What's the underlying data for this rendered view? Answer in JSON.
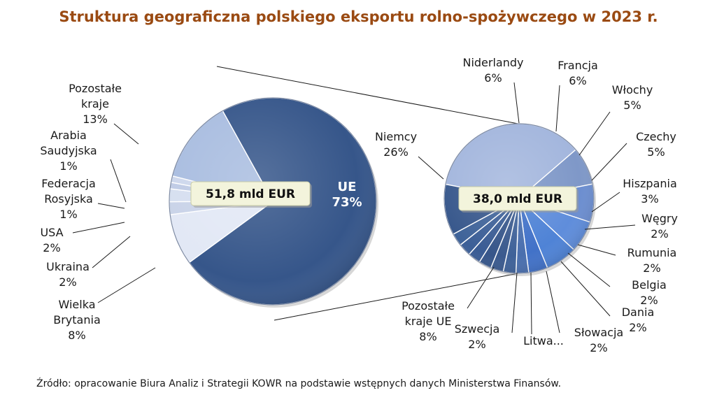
{
  "title": "Struktura geograficzna polskiego eksportu rolno-spożywczego w 2023 r.",
  "source": "Źródło: opracowanie Biura Analiz i Strategii KOWR na podstawie wstępnych danych Ministerstwa Finansów.",
  "colors": {
    "title": "#9a4a12",
    "eu_main": "#36568a",
    "non_eu": "#a9bde0",
    "non_eu_light": "#dfe6f4",
    "callout_fill": "#f3f4dc"
  },
  "chart_data": [
    {
      "type": "pie",
      "total_label": "51,8 mld EUR",
      "slices": [
        {
          "label": "UE",
          "value": 73,
          "value_label": "73%"
        },
        {
          "label": "Wielka Brytania",
          "value": 8,
          "value_label": "8%"
        },
        {
          "label": "Ukraina",
          "value": 2,
          "value_label": "2%"
        },
        {
          "label": "USA",
          "value": 2,
          "value_label": "2%"
        },
        {
          "label": "Federacja Rosyjska",
          "value": 1,
          "value_label": "1%"
        },
        {
          "label": "Arabia Saudyjska",
          "value": 1,
          "value_label": "1%"
        },
        {
          "label": "Pozostałe kraje",
          "value": 13,
          "value_label": "13%"
        }
      ]
    },
    {
      "type": "pie",
      "total_label": "38,0 mld EUR",
      "slices": [
        {
          "label": "Niemcy",
          "value": 26,
          "value_label": "26%"
        },
        {
          "label": "Niderlandy",
          "value": 6,
          "value_label": "6%"
        },
        {
          "label": "Francja",
          "value": 6,
          "value_label": "6%"
        },
        {
          "label": "Włochy",
          "value": 5,
          "value_label": "5%"
        },
        {
          "label": "Czechy",
          "value": 5,
          "value_label": "5%"
        },
        {
          "label": "Hiszpania",
          "value": 3,
          "value_label": "3%"
        },
        {
          "label": "Węgry",
          "value": 2,
          "value_label": "2%"
        },
        {
          "label": "Rumunia",
          "value": 2,
          "value_label": "2%"
        },
        {
          "label": "Belgia",
          "value": 2,
          "value_label": "2%"
        },
        {
          "label": "Dania",
          "value": 2,
          "value_label": "2%"
        },
        {
          "label": "Słowacja",
          "value": 2,
          "value_label": "2%"
        },
        {
          "label": "Litwa...",
          "value": 2,
          "value_label": ""
        },
        {
          "label": "Szwecja",
          "value": 2,
          "value_label": "2%"
        },
        {
          "label": "Pozostałe kraje UE",
          "value": 8,
          "value_label": "8%"
        }
      ]
    }
  ]
}
